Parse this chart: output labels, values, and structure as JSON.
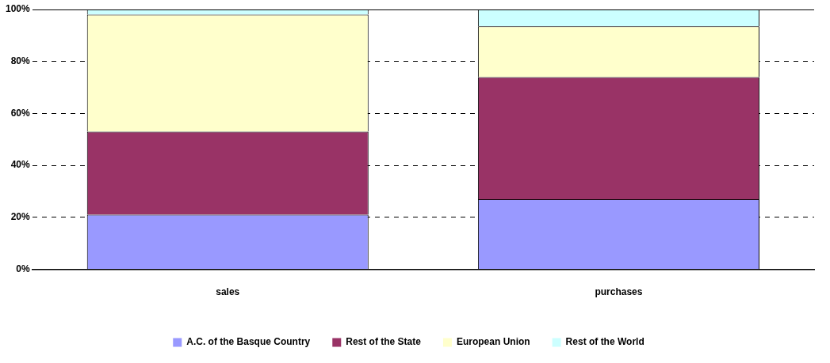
{
  "chart_data": {
    "type": "bar",
    "stacked": true,
    "categories": [
      "sales",
      "purchases"
    ],
    "series": [
      {
        "name": "A.C. of the Basque Country",
        "color": "#9999ff",
        "values": [
          21,
          27
        ]
      },
      {
        "name": "Rest of the State",
        "color": "#993366",
        "values": [
          32,
          47
        ]
      },
      {
        "name": "European Union",
        "color": "#ffffcc",
        "values": [
          45,
          19.5
        ]
      },
      {
        "name": "Rest of the World",
        "color": "#ccffff",
        "values": [
          2,
          6.5
        ]
      }
    ],
    "ylim": [
      0,
      100
    ],
    "yticks": [
      {
        "value": 0,
        "label": "0%"
      },
      {
        "value": 20,
        "label": "20%"
      },
      {
        "value": 40,
        "label": "40%"
      },
      {
        "value": 60,
        "label": "60%"
      },
      {
        "value": 80,
        "label": "80%"
      },
      {
        "value": 100,
        "label": "100%"
      }
    ],
    "grid": "y",
    "legend": "bottom"
  }
}
